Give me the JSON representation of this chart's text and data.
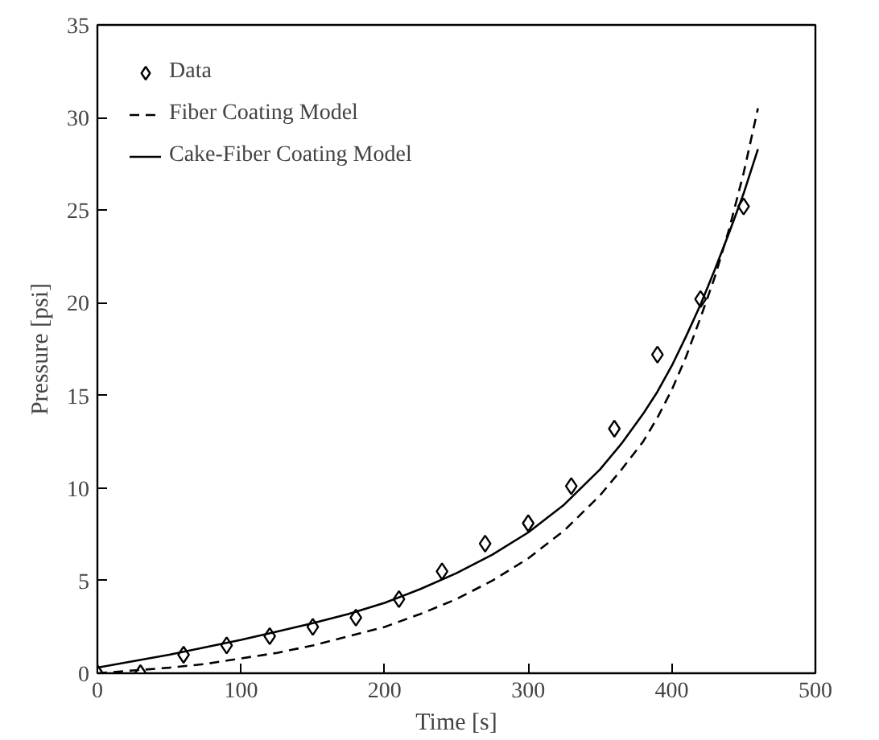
{
  "chart_data": {
    "type": "line",
    "xlabel": "Time [s]",
    "ylabel": "Pressure [psi]",
    "xlim": [
      0,
      500
    ],
    "ylim": [
      0,
      35
    ],
    "xticks": [
      0,
      100,
      200,
      300,
      400,
      500
    ],
    "yticks": [
      0,
      5,
      10,
      15,
      20,
      25,
      30,
      35
    ],
    "grid": false,
    "legend": "top left",
    "series": [
      {
        "name": "Data",
        "type": "scatter",
        "marker": "diamond",
        "color": "#000000",
        "x": [
          0,
          30,
          60,
          90,
          120,
          150,
          180,
          210,
          240,
          270,
          300,
          330,
          360,
          390,
          420,
          450
        ],
        "values": [
          0,
          0,
          1.0,
          1.5,
          2.0,
          2.5,
          3.0,
          4.0,
          5.5,
          7.0,
          8.1,
          10.1,
          13.2,
          17.2,
          20.2,
          25.2
        ]
      },
      {
        "name": "Fiber Coating Model",
        "line_style": "dashed",
        "color": "#000000",
        "x": [
          0,
          25,
          50,
          75,
          100,
          125,
          150,
          175,
          200,
          225,
          250,
          275,
          300,
          325,
          350,
          365,
          380,
          390,
          400,
          410,
          420,
          430,
          440,
          450,
          460
        ],
        "values": [
          0,
          0.15,
          0.3,
          0.5,
          0.8,
          1.1,
          1.5,
          2.0,
          2.5,
          3.2,
          4.0,
          5.0,
          6.2,
          7.7,
          9.6,
          11.0,
          12.5,
          13.8,
          15.3,
          17.1,
          19.2,
          21.4,
          24.0,
          27.0,
          30.5
        ]
      },
      {
        "name": "Cake-Fiber Coating Model",
        "line_style": "solid",
        "color": "#000000",
        "x": [
          0,
          25,
          50,
          75,
          100,
          125,
          150,
          175,
          200,
          225,
          250,
          275,
          300,
          325,
          350,
          365,
          380,
          390,
          400,
          410,
          420,
          430,
          440,
          450,
          460
        ],
        "values": [
          0.3,
          0.65,
          1.0,
          1.4,
          1.8,
          2.25,
          2.7,
          3.2,
          3.8,
          4.55,
          5.4,
          6.4,
          7.6,
          9.1,
          11.0,
          12.4,
          14.0,
          15.2,
          16.6,
          18.2,
          19.9,
          21.8,
          23.8,
          25.9,
          28.3
        ]
      }
    ]
  }
}
